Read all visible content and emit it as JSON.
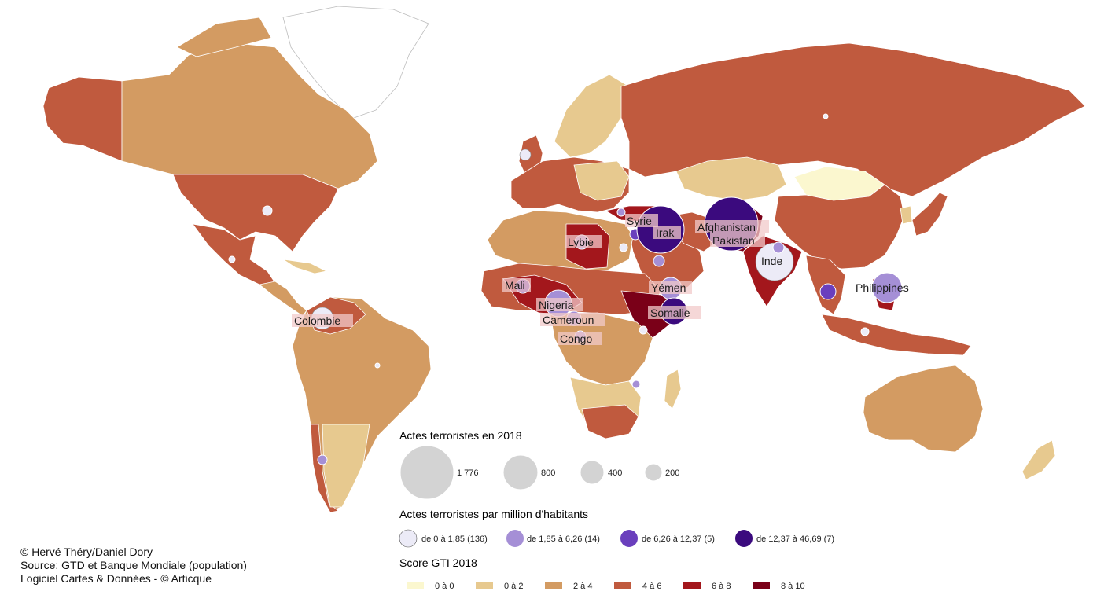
{
  "colors": {
    "gti_0_0": "#fbf7cf",
    "gti_0_2": "#e7c98f",
    "gti_2_4": "#d39b62",
    "gti_4_6": "#c05a3e",
    "gti_6_8": "#a3171c",
    "gti_8_10": "#7a0018",
    "ocean": "#ffffff",
    "rate_1": "#ecebf7",
    "rate_2": "#a58fd6",
    "rate_3": "#6a3fbd",
    "rate_4": "#3b0a7e",
    "bubble_legend": "#d3d3d3"
  },
  "map_labels": [
    {
      "key": "syrie",
      "text": "Syrie"
    },
    {
      "key": "irak",
      "text": "Irak"
    },
    {
      "key": "afghanistan",
      "text": "Afghanistan"
    },
    {
      "key": "pakistan",
      "text": "Pakistan"
    },
    {
      "key": "libye",
      "text": "Lybie"
    },
    {
      "key": "inde",
      "text": "Inde"
    },
    {
      "key": "yemen",
      "text": "Yémen"
    },
    {
      "key": "philippines",
      "text": "Philippines"
    },
    {
      "key": "mali",
      "text": "Mali"
    },
    {
      "key": "nigeria",
      "text": "Nigeria"
    },
    {
      "key": "cameroun",
      "text": "Cameroun"
    },
    {
      "key": "somalie",
      "text": "Somalie"
    },
    {
      "key": "congo",
      "text": "Congo"
    },
    {
      "key": "colombie",
      "text": "Colombie"
    }
  ],
  "legend": {
    "size_title": "Actes terroristes en 2018",
    "size_items": [
      {
        "label": "1 776",
        "value": 1776
      },
      {
        "label": "800",
        "value": 800
      },
      {
        "label": "400",
        "value": 400
      },
      {
        "label": "200",
        "value": 200
      }
    ],
    "rate_title": "Actes terroristes par million d'habitants",
    "rate_items": [
      {
        "label": "de 0 à 1,85 (136)",
        "color_key": "rate_1"
      },
      {
        "label": "de 1,85 à 6,26 (14)",
        "color_key": "rate_2"
      },
      {
        "label": "de 6,26 à 12,37 (5)",
        "color_key": "rate_3"
      },
      {
        "label": "de 12,37 à 46,69 (7)",
        "color_key": "rate_4"
      }
    ],
    "gti_title": "Score GTI 2018",
    "gti_items": [
      {
        "label": "0 à 0",
        "color_key": "gti_0_0"
      },
      {
        "label": "0 à 2",
        "color_key": "gti_0_2"
      },
      {
        "label": "2 à 4",
        "color_key": "gti_2_4"
      },
      {
        "label": "4 à 6",
        "color_key": "gti_4_6"
      },
      {
        "label": "6 à 8",
        "color_key": "gti_6_8"
      },
      {
        "label": "8 à 10",
        "color_key": "gti_8_10"
      }
    ]
  },
  "credits": {
    "line1": "© Hervé Théry/Daniel Dory",
    "line2": "Source: GTD et Banque Mondiale (population)",
    "line3": "Logiciel Cartes & Données - © Articque"
  }
}
